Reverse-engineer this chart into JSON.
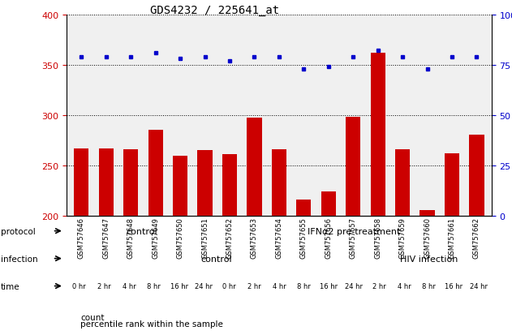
{
  "title": "GDS4232 / 225641_at",
  "samples": [
    "GSM757646",
    "GSM757647",
    "GSM757648",
    "GSM757649",
    "GSM757650",
    "GSM757651",
    "GSM757652",
    "GSM757653",
    "GSM757654",
    "GSM757655",
    "GSM757656",
    "GSM757657",
    "GSM757658",
    "GSM757659",
    "GSM757660",
    "GSM757661",
    "GSM757662"
  ],
  "counts": [
    267,
    267,
    266,
    285,
    259,
    265,
    261,
    297,
    266,
    216,
    224,
    298,
    362,
    266,
    205,
    262,
    280
  ],
  "percentile_ranks": [
    79,
    79,
    79,
    81,
    78,
    79,
    77,
    79,
    79,
    73,
    74,
    79,
    82,
    79,
    73,
    79,
    79
  ],
  "ylim_left": [
    200,
    400
  ],
  "ylim_right": [
    0,
    100
  ],
  "yticks_left": [
    200,
    250,
    300,
    350,
    400
  ],
  "yticks_right": [
    0,
    25,
    50,
    75,
    100
  ],
  "bar_color": "#cc0000",
  "dot_color": "#0000cc",
  "protocol_control_color": "#99ee99",
  "protocol_ifna_color": "#33cc33",
  "protocol_control_label": "control",
  "protocol_ifna_label": "IFNα2 pre-treatment",
  "protocol_control_n": 6,
  "protocol_ifna_n": 11,
  "infection_control_color": "#aaaaee",
  "infection_hiv_color": "#8888bb",
  "infection_control_label": "control",
  "infection_hiv_label": "HIV infection",
  "infection_control_n": 12,
  "infection_hiv_n": 5,
  "time_labels": [
    "0 hr",
    "2 hr",
    "4 hr",
    "8 hr",
    "16 hr",
    "24 hr",
    "0 hr",
    "2 hr",
    "4 hr",
    "8 hr",
    "16 hr",
    "24 hr",
    "2 hr",
    "4 hr",
    "8 hr",
    "16 hr",
    "24 hr"
  ],
  "time_colors": [
    "#fce8e8",
    "#f8d4d4",
    "#f4b8b8",
    "#ee9999",
    "#e87777",
    "#cc4444",
    "#fce8e8",
    "#f8d4d4",
    "#f4b8b8",
    "#ee9999",
    "#e87777",
    "#cc4444",
    "#f8d4d4",
    "#f4b8b8",
    "#ee9999",
    "#e87777",
    "#cc4444"
  ],
  "annotation_protocol": "protocol",
  "annotation_infection": "infection",
  "annotation_time": "time",
  "legend_count": "count",
  "legend_percentile": "percentile rank within the sample",
  "plot_bg": "#f0f0f0"
}
